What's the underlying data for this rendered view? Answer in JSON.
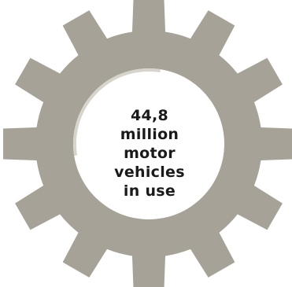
{
  "infographic": {
    "lines": [
      "44,8",
      "million",
      "motor",
      "vehicles",
      "in use"
    ]
  },
  "colors": {
    "gear": "#a6a297",
    "gear_shadow": "#d7d4cc",
    "hub": "#ffffff",
    "text": "#1a1a1a"
  },
  "icon": "gear-icon"
}
